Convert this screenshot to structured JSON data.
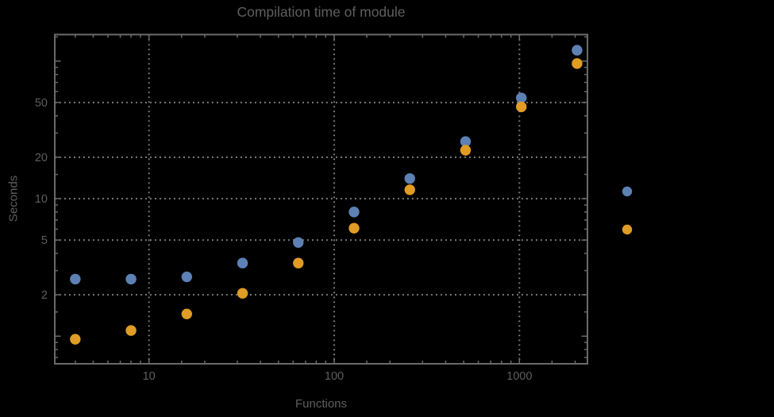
{
  "chart_data": {
    "type": "scatter",
    "title": "Compilation time of module",
    "xlabel": "Functions",
    "ylabel": "Seconds",
    "x_scale": "log",
    "y_scale": "log",
    "xlim": [
      3.1,
      2330
    ],
    "ylim": [
      0.63,
      156
    ],
    "x": [
      4,
      8,
      16,
      32,
      64,
      128,
      256,
      512,
      1024,
      2048
    ],
    "series": [
      {
        "name": "blue",
        "color": "#5E81B5",
        "values": [
          2.6,
          2.6,
          2.7,
          3.4,
          4.8,
          8.0,
          14.0,
          26.0,
          54.0,
          120.0
        ]
      },
      {
        "name": "orange",
        "color": "#E09C24",
        "values": [
          0.95,
          1.1,
          1.45,
          2.05,
          3.4,
          6.1,
          11.6,
          22.5,
          46.5,
          96.0
        ]
      }
    ],
    "x_ticks": {
      "values": [
        10,
        100,
        1000
      ],
      "labels": [
        "10",
        "100",
        "1000"
      ]
    },
    "y_ticks": {
      "values": [
        2,
        5,
        10,
        20,
        50
      ],
      "labels": [
        "2",
        "5",
        "10",
        "20",
        "50"
      ]
    },
    "y_major_unlabeled": [
      1,
      100
    ],
    "grid": {
      "style": "dotted",
      "x_at": [
        10,
        100,
        1000
      ],
      "y_at": [
        2,
        5,
        10,
        20,
        50
      ],
      "legend_position": "right-of-plot"
    },
    "legend": {
      "markers": [
        {
          "series": "blue",
          "color": "#5E81B5"
        },
        {
          "series": "orange",
          "color": "#E09C24"
        }
      ],
      "labels_visible": false
    }
  },
  "colors": {
    "background": "#000000",
    "frame": "#6a6a6a",
    "grid": "#858585",
    "text": "#5e5e5e",
    "series_blue": "#5E81B5",
    "series_orange": "#E09C24"
  }
}
